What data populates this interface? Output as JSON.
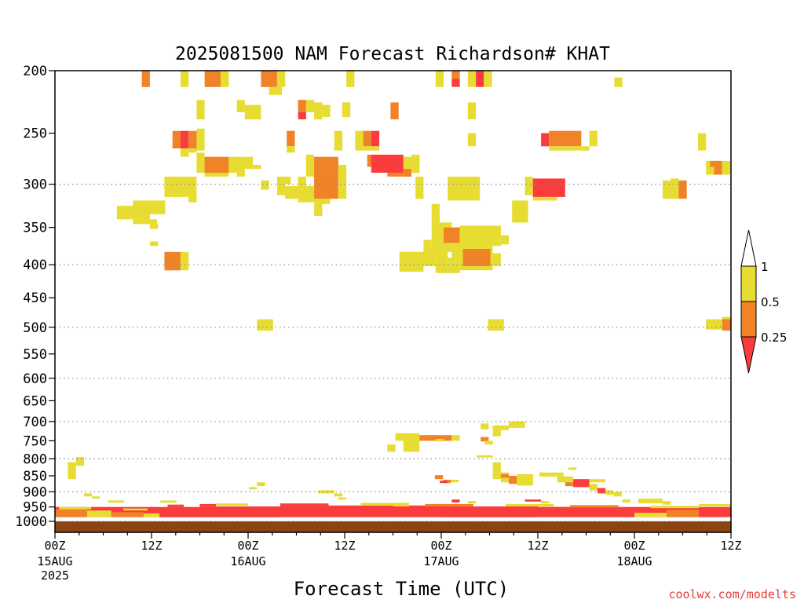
{
  "chart_data": {
    "type": "heatmap",
    "title": "2025081500 NAM Forecast Richardson# KHAT",
    "xlabel": "Forecast Time (UTC)",
    "credit": "coolwx.com/modelts",
    "x_unit": "forecast hour",
    "xlim": [
      0,
      84
    ],
    "ylim_hpa": [
      1000,
      200
    ],
    "y_scale": "log",
    "yticks": [
      200,
      250,
      300,
      350,
      400,
      450,
      500,
      550,
      600,
      650,
      700,
      750,
      800,
      850,
      900,
      950,
      1000
    ],
    "gridlines_hpa": [
      300,
      400,
      500,
      600,
      700,
      800,
      900,
      1000
    ],
    "xticks": [
      {
        "hour": 0,
        "top": "00Z",
        "mid": "15AUG",
        "bot": "2025"
      },
      {
        "hour": 12,
        "top": "12Z",
        "mid": "",
        "bot": ""
      },
      {
        "hour": 24,
        "top": "00Z",
        "mid": "16AUG",
        "bot": ""
      },
      {
        "hour": 36,
        "top": "12Z",
        "mid": "",
        "bot": ""
      },
      {
        "hour": 48,
        "top": "00Z",
        "mid": "17AUG",
        "bot": ""
      },
      {
        "hour": 60,
        "top": "12Z",
        "mid": "",
        "bot": ""
      },
      {
        "hour": 72,
        "top": "00Z",
        "mid": "18AUG",
        "bot": ""
      },
      {
        "hour": 84,
        "top": "12Z",
        "mid": "",
        "bot": ""
      }
    ],
    "legend": {
      "levels": [
        "1",
        "0.5",
        "0.25"
      ],
      "colors": {
        "lt1": "#e6dc32",
        "lt05": "#f08228",
        "lt025": "#fa3c3c"
      },
      "placement": "right"
    },
    "ground_color": "#8b4513",
    "cells": [
      [
        10.8,
        11.8,
        200,
        212,
        "lt05"
      ],
      [
        15.6,
        16.6,
        200,
        212,
        "lt1"
      ],
      [
        18.6,
        20.6,
        200,
        212,
        "lt05"
      ],
      [
        20.6,
        21.6,
        200,
        212,
        "lt1"
      ],
      [
        25.6,
        27.6,
        200,
        212,
        "lt05"
      ],
      [
        27.6,
        28.6,
        200,
        212,
        "lt1"
      ],
      [
        26.6,
        28.2,
        212,
        218,
        "lt1"
      ],
      [
        36.2,
        37.2,
        200,
        212,
        "lt1"
      ],
      [
        47.3,
        48.3,
        200,
        212,
        "lt1"
      ],
      [
        49.3,
        50.3,
        200,
        206,
        "lt05"
      ],
      [
        49.3,
        50.3,
        206,
        212,
        "lt025"
      ],
      [
        51.3,
        52.3,
        200,
        212,
        "lt1"
      ],
      [
        52.3,
        53.3,
        200,
        212,
        "lt025"
      ],
      [
        53.3,
        54.3,
        200,
        212,
        "lt1"
      ],
      [
        69.5,
        70.5,
        205,
        212,
        "lt1"
      ],
      [
        17.6,
        18.6,
        222,
        238,
        "lt1"
      ],
      [
        22.6,
        23.6,
        222,
        232,
        "lt1"
      ],
      [
        23.6,
        25.6,
        226,
        238,
        "lt1"
      ],
      [
        30.2,
        31.2,
        222,
        232,
        "lt05"
      ],
      [
        31.2,
        32.2,
        222,
        232,
        "lt1"
      ],
      [
        30.2,
        31.2,
        232,
        238,
        "lt025"
      ],
      [
        32.2,
        33.2,
        224,
        238,
        "lt1"
      ],
      [
        33.2,
        34.2,
        226,
        236,
        "lt1"
      ],
      [
        35.7,
        36.7,
        224,
        236,
        "lt1"
      ],
      [
        41.7,
        42.7,
        224,
        238,
        "lt05"
      ],
      [
        51.3,
        52.3,
        224,
        238,
        "lt1"
      ],
      [
        14.6,
        15.6,
        248,
        264,
        "lt05"
      ],
      [
        15.6,
        16.6,
        248,
        264,
        "lt025"
      ],
      [
        16.6,
        17.6,
        248,
        264,
        "lt05"
      ],
      [
        17.6,
        18.6,
        246,
        266,
        "lt1"
      ],
      [
        15.6,
        16.6,
        264,
        272,
        "lt1"
      ],
      [
        16.6,
        17.6,
        264,
        268,
        "lt1"
      ],
      [
        28.8,
        29.8,
        248,
        262,
        "lt05"
      ],
      [
        28.8,
        29.8,
        262,
        268,
        "lt1"
      ],
      [
        34.7,
        35.7,
        248,
        266,
        "lt1"
      ],
      [
        37.3,
        38.3,
        248,
        266,
        "lt1"
      ],
      [
        38.3,
        39.3,
        248,
        262,
        "lt05"
      ],
      [
        39.3,
        40.3,
        248,
        262,
        "lt025"
      ],
      [
        38.3,
        40.3,
        262,
        266,
        "lt1"
      ],
      [
        51.3,
        52.3,
        250,
        262,
        "lt1"
      ],
      [
        60.4,
        61.4,
        250,
        262,
        "lt025"
      ],
      [
        61.4,
        65.4,
        248,
        262,
        "lt05"
      ],
      [
        61.4,
        66.4,
        262,
        266,
        "lt1"
      ],
      [
        66.4,
        67.4,
        248,
        262,
        "lt1"
      ],
      [
        79.9,
        80.9,
        250,
        266,
        "lt1"
      ],
      [
        17.6,
        18.6,
        268,
        288,
        "lt1"
      ],
      [
        18.6,
        21.6,
        272,
        288,
        "lt05"
      ],
      [
        21.6,
        23.6,
        272,
        288,
        "lt1"
      ],
      [
        23.6,
        24.6,
        272,
        284,
        "lt1"
      ],
      [
        24.6,
        25.6,
        280,
        284,
        "lt1"
      ],
      [
        18.6,
        21.6,
        288,
        292,
        "lt1"
      ],
      [
        22.6,
        23.6,
        288,
        292,
        "lt1"
      ],
      [
        38.8,
        41.3,
        270,
        282,
        "lt05"
      ],
      [
        39.3,
        43.3,
        270,
        288,
        "lt025"
      ],
      [
        41.3,
        43.3,
        288,
        292,
        "lt05"
      ],
      [
        43.3,
        44.3,
        272,
        284,
        "lt1"
      ],
      [
        43.3,
        44.3,
        284,
        292,
        "lt05"
      ],
      [
        44.3,
        45.3,
        270,
        288,
        "lt1"
      ],
      [
        80.9,
        81.9,
        276,
        290,
        "lt1"
      ],
      [
        81.9,
        82.9,
        276,
        290,
        "lt05"
      ],
      [
        82.9,
        83.9,
        276,
        290,
        "lt1"
      ],
      [
        81.4,
        82.4,
        276,
        282,
        "lt05"
      ],
      [
        28.3,
        29.3,
        292,
        300,
        "lt1"
      ],
      [
        31.2,
        32.2,
        270,
        292,
        "lt1"
      ],
      [
        32.2,
        35.2,
        272,
        302,
        "lt05"
      ],
      [
        30.2,
        31.2,
        292,
        302,
        "lt1"
      ],
      [
        35.2,
        36.2,
        280,
        302,
        "lt1"
      ],
      [
        13.6,
        17.6,
        292,
        314,
        "lt1"
      ],
      [
        16.6,
        17.6,
        314,
        320,
        "lt1"
      ],
      [
        25.6,
        26.6,
        296,
        306,
        "lt1"
      ],
      [
        27.6,
        28.6,
        292,
        312,
        "lt1"
      ],
      [
        28.6,
        30.2,
        302,
        316,
        "lt1"
      ],
      [
        30.2,
        32.2,
        302,
        320,
        "lt1"
      ],
      [
        32.2,
        35.2,
        302,
        316,
        "lt05"
      ],
      [
        35.2,
        36.2,
        302,
        316,
        "lt1"
      ],
      [
        32.2,
        34.2,
        316,
        322,
        "lt1"
      ],
      [
        32.2,
        33.2,
        322,
        336,
        "lt1"
      ],
      [
        44.8,
        45.8,
        292,
        316,
        "lt1"
      ],
      [
        48.8,
        52.8,
        292,
        318,
        "lt1"
      ],
      [
        58.4,
        59.4,
        292,
        312,
        "lt1"
      ],
      [
        59.4,
        60.4,
        298,
        316,
        "lt05"
      ],
      [
        59.4,
        63.4,
        294,
        314,
        "lt025"
      ],
      [
        59.4,
        62.4,
        314,
        318,
        "lt1"
      ],
      [
        75.5,
        77.5,
        296,
        316,
        "lt1"
      ],
      [
        77.5,
        78.5,
        296,
        316,
        "lt05"
      ],
      [
        76.5,
        77.5,
        294,
        300,
        "lt1"
      ],
      [
        7.7,
        11.8,
        324,
        340,
        "lt1"
      ],
      [
        9.7,
        13.7,
        318,
        334,
        "lt1"
      ],
      [
        9.7,
        12.7,
        340,
        346,
        "lt1"
      ],
      [
        11.8,
        12.8,
        346,
        352,
        "lt1"
      ],
      [
        56.8,
        58.8,
        318,
        344,
        "lt1"
      ],
      [
        46.8,
        47.8,
        322,
        344,
        "lt1"
      ],
      [
        46.8,
        49.3,
        344,
        382,
        "lt1"
      ],
      [
        48.3,
        50.3,
        350,
        370,
        "lt05"
      ],
      [
        50.3,
        55.4,
        348,
        374,
        "lt1"
      ],
      [
        49.3,
        50.3,
        370,
        390,
        "lt1"
      ],
      [
        50.3,
        51.3,
        374,
        388,
        "lt1"
      ],
      [
        45.8,
        46.8,
        366,
        386,
        "lt1"
      ],
      [
        55.4,
        56.4,
        360,
        372,
        "lt1"
      ],
      [
        11.8,
        12.8,
        368,
        374,
        "lt1"
      ],
      [
        42.8,
        47.3,
        382,
        402,
        "lt1"
      ],
      [
        47.3,
        48.8,
        382,
        412,
        "lt1"
      ],
      [
        48.8,
        50.3,
        390,
        412,
        "lt1"
      ],
      [
        50.3,
        54.4,
        374,
        396,
        "lt1"
      ],
      [
        50.3,
        54.4,
        396,
        408,
        "lt1"
      ],
      [
        50.7,
        54.1,
        378,
        402,
        "lt05"
      ],
      [
        54.4,
        55.4,
        384,
        402,
        "lt1"
      ],
      [
        42.8,
        45.8,
        402,
        410,
        "lt1"
      ],
      [
        13.6,
        15.6,
        382,
        408,
        "lt05"
      ],
      [
        15.6,
        16.6,
        382,
        408,
        "lt1"
      ],
      [
        25.1,
        27.1,
        486,
        506,
        "lt1"
      ],
      [
        53.8,
        55.8,
        486,
        506,
        "lt1"
      ],
      [
        80.9,
        82.9,
        486,
        504,
        "lt1"
      ],
      [
        82.9,
        84.0,
        484,
        506,
        "lt05"
      ],
      [
        82.9,
        84.0,
        482,
        486,
        "lt1"
      ],
      [
        42.3,
        45.3,
        730,
        750,
        "lt1"
      ],
      [
        45.3,
        49.3,
        735,
        750,
        "lt05"
      ],
      [
        49.3,
        50.3,
        735,
        750,
        "lt1"
      ],
      [
        41.3,
        42.3,
        760,
        780,
        "lt1"
      ],
      [
        43.3,
        45.3,
        750,
        780,
        "lt1"
      ],
      [
        47.3,
        48.3,
        745,
        752,
        "lt1"
      ],
      [
        52.9,
        53.9,
        705,
        720,
        "lt1"
      ],
      [
        54.4,
        56.4,
        710,
        722,
        "lt1"
      ],
      [
        56.4,
        58.4,
        700,
        716,
        "lt1"
      ],
      [
        54.4,
        55.4,
        722,
        738,
        "lt1"
      ],
      [
        52.9,
        53.9,
        740,
        752,
        "lt05"
      ],
      [
        53.4,
        54.4,
        750,
        760,
        "lt1"
      ],
      [
        52.4,
        54.4,
        790,
        796,
        "lt1"
      ],
      [
        1.6,
        2.6,
        810,
        860,
        "lt1"
      ],
      [
        2.6,
        3.6,
        795,
        820,
        "lt1"
      ],
      [
        54.4,
        55.4,
        810,
        860,
        "lt1"
      ],
      [
        55.4,
        56.4,
        840,
        870,
        "lt1"
      ],
      [
        56.4,
        57.4,
        850,
        875,
        "lt05"
      ],
      [
        57.4,
        59.4,
        845,
        880,
        "lt1"
      ],
      [
        55.4,
        56.4,
        845,
        856,
        "lt05"
      ],
      [
        60.2,
        63.2,
        840,
        852,
        "lt1"
      ],
      [
        62.4,
        64.4,
        852,
        870,
        "lt1"
      ],
      [
        63.4,
        64.4,
        870,
        882,
        "lt05"
      ],
      [
        64.4,
        66.4,
        860,
        885,
        "lt025"
      ],
      [
        63.8,
        64.8,
        825,
        832,
        "lt1"
      ],
      [
        66.4,
        67.4,
        875,
        895,
        "lt1"
      ],
      [
        67.4,
        68.4,
        888,
        905,
        "lt025"
      ],
      [
        68.4,
        69.4,
        895,
        910,
        "lt1"
      ],
      [
        69.4,
        70.4,
        900,
        915,
        "lt1"
      ],
      [
        66.4,
        68.4,
        860,
        870,
        "lt1"
      ],
      [
        47.2,
        48.2,
        848,
        860,
        "lt05"
      ],
      [
        48.2,
        49.2,
        862,
        872,
        "lt05"
      ],
      [
        49.2,
        50.2,
        862,
        870,
        "lt1"
      ],
      [
        47.8,
        48.8,
        865,
        872,
        "lt025"
      ],
      [
        25.1,
        26.1,
        870,
        882,
        "lt1"
      ],
      [
        24.1,
        25.1,
        885,
        892,
        "lt1"
      ],
      [
        3.6,
        4.6,
        905,
        915,
        "lt1"
      ],
      [
        4.6,
        5.6,
        915,
        922,
        "lt1"
      ],
      [
        6.6,
        8.6,
        928,
        935,
        "lt1"
      ],
      [
        13.1,
        15.1,
        928,
        935,
        "lt1"
      ],
      [
        32.7,
        34.7,
        895,
        905,
        "lt1"
      ],
      [
        34.7,
        35.7,
        905,
        915,
        "lt1"
      ],
      [
        35.2,
        36.2,
        918,
        925,
        "lt1"
      ],
      [
        49.3,
        50.3,
        925,
        935,
        "lt025"
      ],
      [
        51.3,
        52.3,
        930,
        938,
        "lt1"
      ],
      [
        58.4,
        60.4,
        925,
        932,
        "lt025"
      ],
      [
        60.4,
        61.4,
        930,
        938,
        "lt1"
      ],
      [
        72.5,
        75.5,
        922,
        938,
        "lt1"
      ],
      [
        75.5,
        76.5,
        930,
        942,
        "lt1"
      ],
      [
        70.5,
        71.5,
        925,
        935,
        "lt1"
      ],
      [
        0.0,
        84.0,
        950,
        985,
        "lt025"
      ],
      [
        0.0,
        4.0,
        958,
        985,
        "lt05"
      ],
      [
        4.0,
        7.0,
        962,
        985,
        "lt1"
      ],
      [
        7.0,
        11.0,
        968,
        985,
        "lt05"
      ],
      [
        11.0,
        13.0,
        972,
        985,
        "lt1"
      ],
      [
        13.0,
        18.0,
        952,
        985,
        "lt025"
      ],
      [
        18.0,
        28.0,
        948,
        985,
        "lt025"
      ],
      [
        28.0,
        48.0,
        945,
        985,
        "lt025"
      ],
      [
        48.0,
        60.0,
        948,
        985,
        "lt025"
      ],
      [
        60.0,
        68.0,
        950,
        985,
        "lt025"
      ],
      [
        68.0,
        72.0,
        962,
        985,
        "lt025"
      ],
      [
        72.0,
        76.0,
        970,
        985,
        "lt1"
      ],
      [
        76.0,
        80.0,
        960,
        985,
        "lt05"
      ],
      [
        80.0,
        84.0,
        955,
        985,
        "lt025"
      ],
      [
        0.5,
        4.5,
        950,
        958,
        "lt1"
      ],
      [
        8.5,
        11.5,
        955,
        962,
        "lt1"
      ],
      [
        14.0,
        16.0,
        942,
        950,
        "lt025"
      ],
      [
        20.0,
        24.0,
        938,
        946,
        "lt1"
      ],
      [
        28.0,
        34.0,
        938,
        945,
        "lt025"
      ],
      [
        38.0,
        44.0,
        936,
        944,
        "lt1"
      ],
      [
        46.0,
        52.0,
        940,
        948,
        "lt05"
      ],
      [
        56.0,
        62.0,
        940,
        948,
        "lt1"
      ],
      [
        64.0,
        70.0,
        944,
        952,
        "lt05"
      ],
      [
        74.0,
        80.0,
        946,
        954,
        "lt1"
      ],
      [
        80.0,
        84.0,
        940,
        948,
        "lt1"
      ],
      [
        18.0,
        20.0,
        940,
        948,
        "lt025"
      ],
      [
        42.0,
        44.0,
        942,
        948,
        "lt1"
      ]
    ]
  }
}
